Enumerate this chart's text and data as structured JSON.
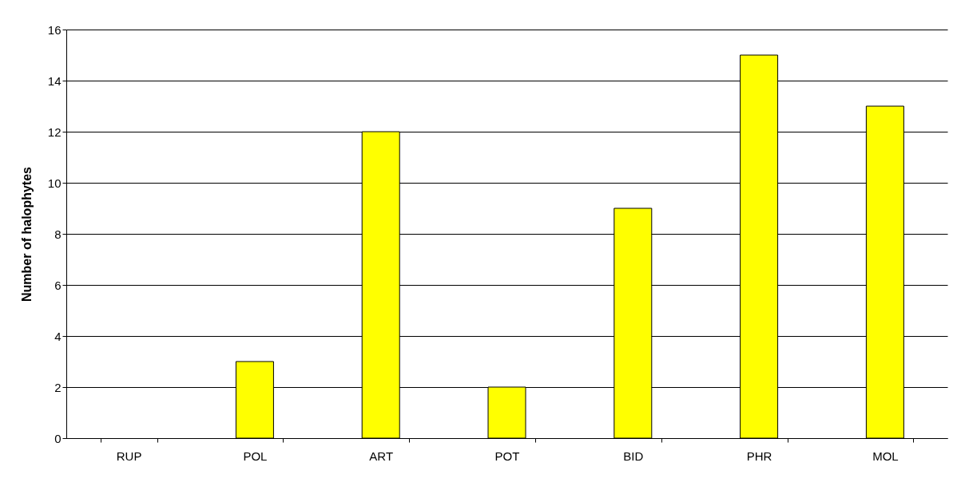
{
  "chart_data": {
    "type": "bar",
    "ylabel": "Number of halophytes",
    "categories": [
      "RUP",
      "POL",
      "ART",
      "POT",
      "BID",
      "PHR",
      "MOL"
    ],
    "values": [
      0,
      3,
      12,
      2,
      9,
      15,
      13
    ],
    "color": "#ffff00",
    "ylim": [
      0,
      16
    ],
    "yticks": [
      0,
      2,
      4,
      6,
      8,
      10,
      12,
      14,
      16
    ],
    "grid": "y"
  }
}
